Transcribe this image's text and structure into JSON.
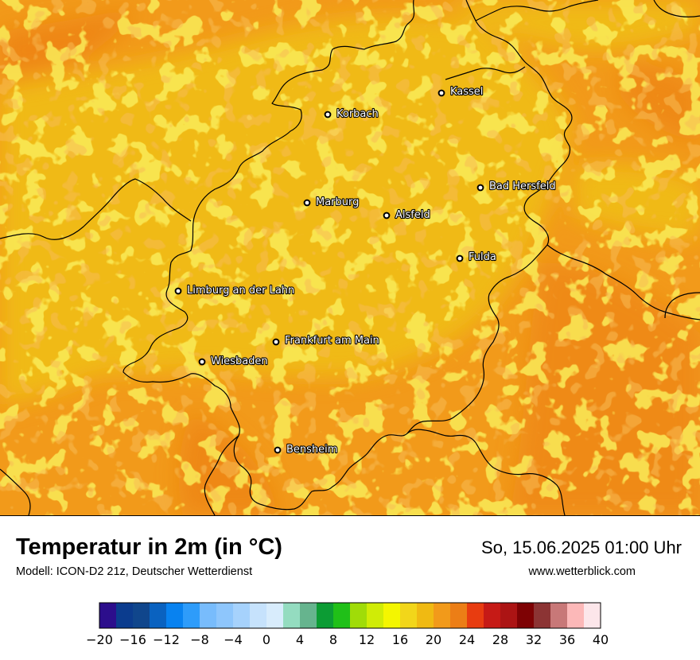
{
  "title": "Temperatur in 2m (in °C)",
  "subtitle": "Modell: ICON-D2 21z, Deutscher Wetterdienst",
  "datetime": "So, 15.06.2025 01:00 Uhr",
  "website": "www.wetterblick.com",
  "colors": {
    "base": "#f0ba12",
    "warm": "#f29a1a",
    "hot": "#ec7e16",
    "cool": "#f2d61a",
    "border": "#000000"
  },
  "cities": [
    {
      "name": "Kassel",
      "key": "kassel"
    },
    {
      "name": "Korbach",
      "key": "korbach"
    },
    {
      "name": "Bad Hersfeld",
      "key": "bad-hersfeld"
    },
    {
      "name": "Marburg",
      "key": "marburg"
    },
    {
      "name": "Alsfeld",
      "key": "alsfeld"
    },
    {
      "name": "Fulda",
      "key": "fulda"
    },
    {
      "name": "Limburg an der Lahn",
      "key": "limburg"
    },
    {
      "name": "Frankfurt am Main",
      "key": "frankfurt"
    },
    {
      "name": "Wiesbaden",
      "key": "wiesbaden"
    },
    {
      "name": "Bensheim",
      "key": "bensheim"
    }
  ],
  "legend": {
    "min": -20,
    "max": 40,
    "step": 2,
    "tick_labels": [
      "−20",
      "−16",
      "−12",
      "−8",
      "−4",
      "0",
      "4",
      "8",
      "12",
      "16",
      "20",
      "24",
      "28",
      "32",
      "36",
      "40"
    ],
    "colors": [
      "#2c0e8c",
      "#0b3c8e",
      "#10468c",
      "#0a62c0",
      "#0882f0",
      "#2e9cfa",
      "#78bcfc",
      "#8ec6fc",
      "#a6d2fc",
      "#c6e2fc",
      "#d8ecfc",
      "#94dcc0",
      "#66b48e",
      "#0c9c34",
      "#20c018",
      "#a0dc08",
      "#d0ec06",
      "#f4f600",
      "#f2d61a",
      "#f0ba12",
      "#f29a1a",
      "#ec7e16",
      "#e83c10",
      "#c61a16",
      "#ac1414",
      "#7e0204",
      "#8c3434",
      "#c87878",
      "#fcb8b8",
      "#fce6ea"
    ]
  }
}
